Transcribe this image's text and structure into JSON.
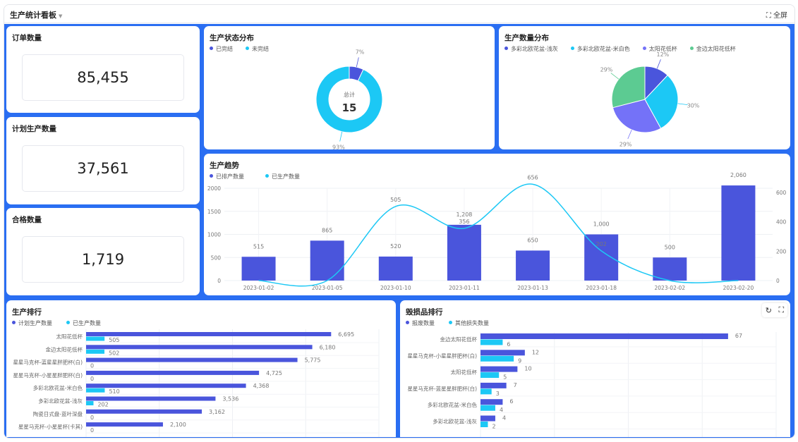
{
  "header": {
    "title": "生产统计看板",
    "fullscreen": "全屏"
  },
  "kpis": [
    {
      "label": "订单数量",
      "value": "85,455"
    },
    {
      "label": "计划生产数量",
      "value": "37,561"
    },
    {
      "label": "合格数量",
      "value": "1,719"
    }
  ],
  "colors": {
    "primary": "#4a55dc",
    "cyan": "#1cc8f5",
    "purple": "#7472f8",
    "green": "#5ccb92",
    "panel": "#2a6ef2"
  },
  "chart_data": [
    {
      "id": "status",
      "type": "pie",
      "title": "生产状态分布",
      "legend": [
        "已完结",
        "未完结"
      ],
      "values": [
        7,
        93
      ],
      "labels": [
        "7%",
        "93%"
      ],
      "center_label": "总计",
      "center_value": "15"
    },
    {
      "id": "qty",
      "type": "pie",
      "title": "生产数量分布",
      "legend": [
        "多彩北欧花盆-浅灰",
        "多彩北欧花盆-米白色",
        "太阳花低杯",
        "金边太阳花低杯"
      ],
      "values": [
        12,
        30,
        29,
        29
      ],
      "labels": [
        "12%",
        "30%",
        "29%",
        "29%"
      ]
    },
    {
      "id": "trend",
      "type": "bar",
      "title": "生产趋势",
      "categories": [
        "2023-01-02",
        "2023-01-05",
        "2023-01-10",
        "2023-01-11",
        "2023-01-13",
        "2023-01-18",
        "2023-02-02",
        "2023-02-20"
      ],
      "series": [
        {
          "name": "已排产数量",
          "type": "bar",
          "values": [
            515,
            865,
            520,
            1208,
            650,
            1000,
            500,
            2060
          ],
          "labels": [
            "515",
            "865",
            "520",
            "1,208",
            "650",
            "1,000",
            "500",
            "2,060"
          ]
        },
        {
          "name": "已生产数量",
          "type": "line",
          "values": [
            0,
            0,
            505,
            356,
            656,
            202,
            0,
            0
          ]
        }
      ],
      "yticks": [
        "0",
        "500",
        "1000",
        "1500",
        "2000"
      ],
      "y2ticks": [
        "0",
        "200",
        "400",
        "600"
      ],
      "ylim": [
        0,
        2000
      ],
      "y2lim": [
        0,
        600
      ]
    },
    {
      "id": "rank",
      "type": "bar",
      "orientation": "horizontal",
      "title": "生产排行",
      "legend": [
        "计划生产数量",
        "已生产数量"
      ],
      "categories": [
        "太阳花低杯",
        "金边太阳花低杯",
        "星星马克杯-蓝星星胖肥杯(白)",
        "星星马克杯-小星星胖肥杯(白)",
        "多彩北欧花盆-米白色",
        "多彩北欧花盆-浅灰",
        "陶瓷日式盘-蓝叶深盘",
        "星星马克杯-小星星杯(卡其)"
      ],
      "series": [
        {
          "name": "计划生产数量",
          "values": [
            6695,
            6180,
            5775,
            4725,
            4368,
            3536,
            3162,
            2100
          ],
          "labels": [
            "6,695",
            "6,180",
            "5,775",
            "4,725",
            "4,368",
            "3,536",
            "3,162",
            "2,100"
          ]
        },
        {
          "name": "已生产数量",
          "values": [
            505,
            502,
            0,
            0,
            510,
            202,
            0,
            0
          ],
          "labels": [
            "505",
            "502",
            "0",
            "0",
            "510",
            "202",
            "0",
            "0"
          ]
        }
      ],
      "xlim": [
        0,
        8000
      ]
    },
    {
      "id": "damage",
      "type": "bar",
      "orientation": "horizontal",
      "title": "毁损品排行",
      "legend": [
        "报废数量",
        "其他损失数量"
      ],
      "categories": [
        "金边太阳花低杯",
        "星星马克杯-小星星胖肥杯(白)",
        "太阳花低杯",
        "星星马克杯-蓝星星胖肥杯(白)",
        "多彩北欧花盆-米白色",
        "多彩北欧花盆-浅灰"
      ],
      "series": [
        {
          "name": "报废数量",
          "values": [
            67,
            12,
            10,
            7,
            6,
            4
          ],
          "labels": [
            "67",
            "12",
            "10",
            "7",
            "6",
            "4"
          ]
        },
        {
          "name": "其他损失数量",
          "values": [
            6,
            9,
            5,
            3,
            4,
            2
          ],
          "labels": [
            "6",
            "9",
            "5",
            "3",
            "4",
            "2"
          ]
        }
      ],
      "xlim": [
        0,
        80
      ]
    }
  ]
}
